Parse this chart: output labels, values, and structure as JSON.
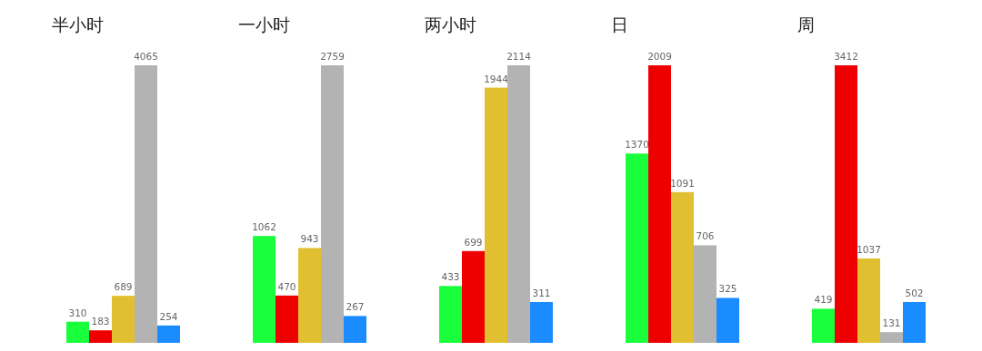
{
  "chart_data": [
    {
      "type": "bar",
      "title": "半小时",
      "categories": [
        null,
        null,
        null,
        null,
        null
      ],
      "values": [
        310,
        183,
        689,
        4065,
        254
      ],
      "colors": [
        "#19ff3c",
        "#ee0000",
        "#e0c030",
        "#b3b3b3",
        "#1a8cff"
      ],
      "data_labels": true
    },
    {
      "type": "bar",
      "title": "一小时",
      "categories": [
        null,
        null,
        null,
        null,
        null
      ],
      "values": [
        1062,
        470,
        943,
        2759,
        267
      ],
      "colors": [
        "#19ff3c",
        "#ee0000",
        "#e0c030",
        "#b3b3b3",
        "#1a8cff"
      ],
      "data_labels": true
    },
    {
      "type": "bar",
      "title": "两小时",
      "categories": [
        null,
        null,
        null,
        null,
        null
      ],
      "values": [
        433,
        699,
        1944,
        2114,
        311
      ],
      "colors": [
        "#19ff3c",
        "#ee0000",
        "#e0c030",
        "#b3b3b3",
        "#1a8cff"
      ],
      "data_labels": true
    },
    {
      "type": "bar",
      "title": "日",
      "categories": [
        null,
        null,
        null,
        null,
        null
      ],
      "values": [
        1370,
        2009,
        1091,
        706,
        325
      ],
      "colors": [
        "#19ff3c",
        "#ee0000",
        "#e0c030",
        "#b3b3b3",
        "#1a8cff"
      ],
      "data_labels": true
    },
    {
      "type": "bar",
      "title": "周",
      "categories": [
        null,
        null,
        null,
        null,
        null
      ],
      "values": [
        419,
        3412,
        1037,
        131,
        502
      ],
      "colors": [
        "#19ff3c",
        "#ee0000",
        "#e0c030",
        "#b3b3b3",
        "#1a8cff"
      ],
      "data_labels": true
    }
  ]
}
